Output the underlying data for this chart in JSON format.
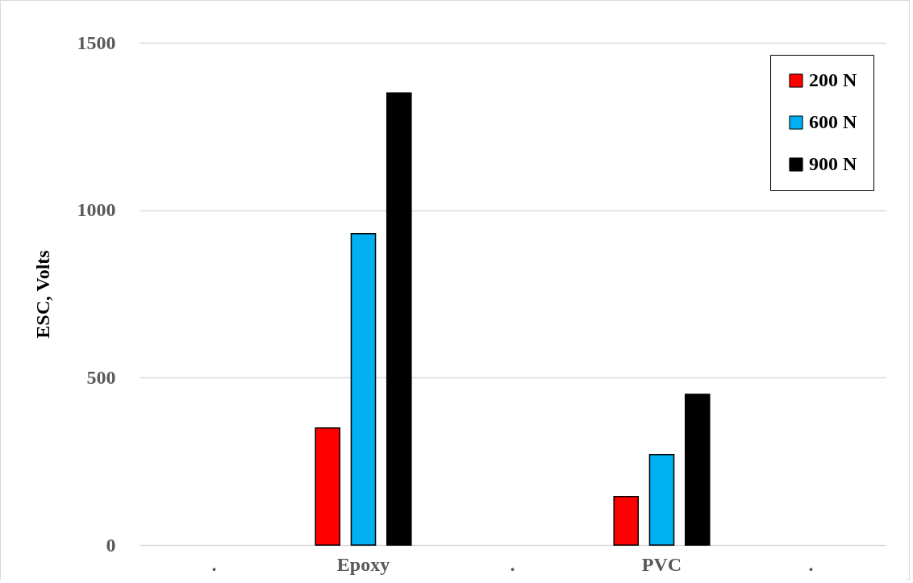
{
  "chart_data": {
    "type": "bar",
    "ylabel": "ESC, Volts",
    "categories": [
      ".",
      "Epoxy",
      ".",
      "PVC",
      "."
    ],
    "series": [
      {
        "name": "200 N",
        "color": "#ff0000",
        "values": [
          null,
          350,
          null,
          145,
          null
        ]
      },
      {
        "name": "600 N",
        "color": "#00b0f0",
        "values": [
          null,
          930,
          null,
          270,
          null
        ]
      },
      {
        "name": "900 N",
        "color": "#000000",
        "values": [
          null,
          1350,
          null,
          450,
          null
        ]
      }
    ],
    "ylim": [
      0,
      1500
    ],
    "yticks": [
      0,
      500,
      1000,
      1500
    ],
    "grid": "y",
    "legend": "top right"
  }
}
